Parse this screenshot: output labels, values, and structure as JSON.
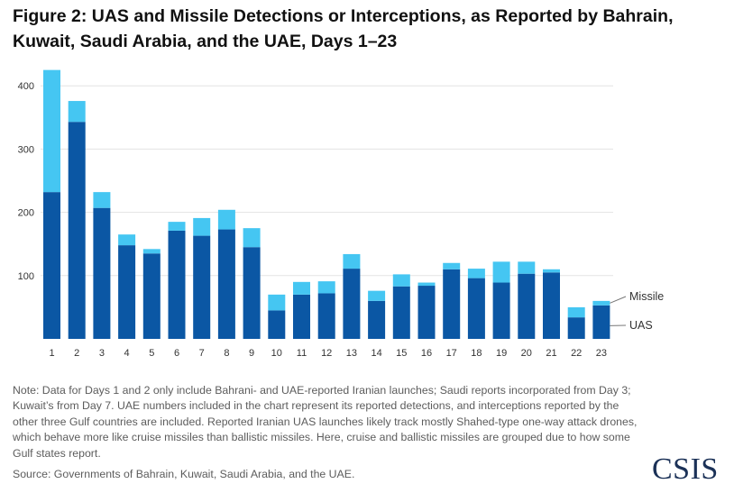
{
  "header": {
    "title": "Figure 2: UAS and Missile Detections or Interceptions, as Reported by Bahrain, Kuwait, Saudi Arabia, and the UAE, Days 1–23"
  },
  "chart_data": {
    "type": "bar",
    "stacked": true,
    "categories": [
      "1",
      "2",
      "3",
      "4",
      "5",
      "6",
      "7",
      "8",
      "9",
      "10",
      "11",
      "12",
      "13",
      "14",
      "15",
      "16",
      "17",
      "18",
      "19",
      "20",
      "21",
      "22",
      "23"
    ],
    "series": [
      {
        "name": "UAS",
        "color": "#0b57a4",
        "values": [
          232,
          343,
          207,
          148,
          135,
          171,
          163,
          173,
          145,
          45,
          70,
          72,
          111,
          60,
          83,
          84,
          110,
          96,
          89,
          103,
          105,
          34,
          53
        ]
      },
      {
        "name": "Missile",
        "color": "#45c6f2",
        "values": [
          193,
          33,
          25,
          17,
          7,
          14,
          28,
          31,
          30,
          25,
          20,
          19,
          23,
          16,
          19,
          5,
          10,
          15,
          33,
          19,
          5,
          16,
          7
        ]
      }
    ],
    "ylim": [
      0,
      430
    ],
    "yticks": [
      100,
      200,
      300,
      400
    ],
    "grid": true,
    "legend": "direct labels at right end of last bar"
  },
  "notes": {
    "note_text": "Note: Data for Days 1 and 2 only include Bahrani- and UAE-reported Iranian launches; Saudi reports incorporated from Day 3; Kuwait’s from Day 7. UAE numbers included in the chart represent its reported detections, and interceptions reported by the other three Gulf countries are included. Reported Iranian UAS launches likely track mostly Shahed-type one-way attack drones, which behave more like cruise missiles than ballistic missiles. Here, cruise and ballistic missiles are grouped due to how some Gulf states report.",
    "source_text": "Source: Governments of Bahrain, Kuwait, Saudi Arabia, and the UAE."
  },
  "branding": {
    "logo_text": "CSIS"
  }
}
